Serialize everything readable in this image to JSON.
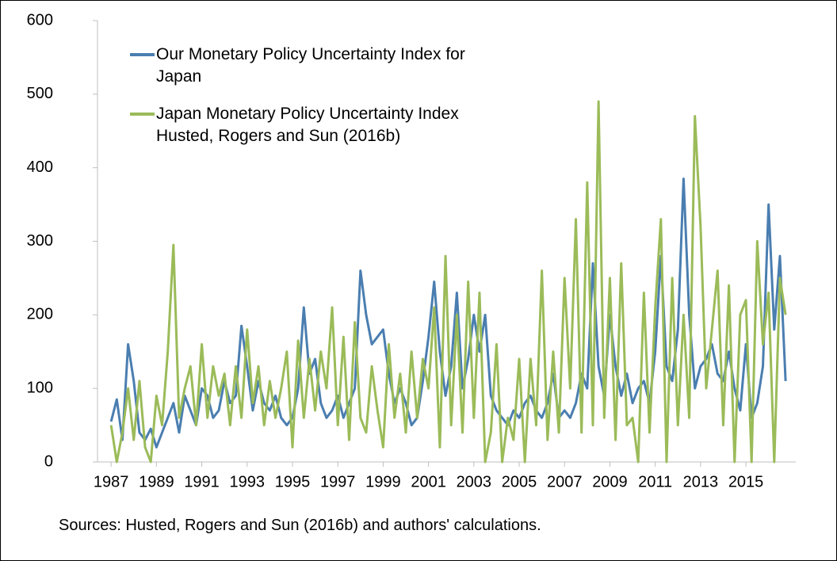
{
  "chart_data": {
    "type": "line",
    "x": [
      1987,
      1987.25,
      1987.5,
      1987.75,
      1988,
      1988.25,
      1988.5,
      1988.75,
      1989,
      1989.25,
      1989.5,
      1989.75,
      1990,
      1990.25,
      1990.5,
      1990.75,
      1991,
      1991.25,
      1991.5,
      1991.75,
      1992,
      1992.25,
      1992.5,
      1992.75,
      1993,
      1993.25,
      1993.5,
      1993.75,
      1994,
      1994.25,
      1994.5,
      1994.75,
      1995,
      1995.25,
      1995.5,
      1995.75,
      1996,
      1996.25,
      1996.5,
      1996.75,
      1997,
      1997.25,
      1997.5,
      1997.75,
      1998,
      1998.25,
      1998.5,
      1998.75,
      1999,
      1999.25,
      1999.5,
      1999.75,
      2000,
      2000.25,
      2000.5,
      2000.75,
      2001,
      2001.25,
      2001.5,
      2001.75,
      2002,
      2002.25,
      2002.5,
      2002.75,
      2003,
      2003.25,
      2003.5,
      2003.75,
      2004,
      2004.25,
      2004.5,
      2004.75,
      2005,
      2005.25,
      2005.5,
      2005.75,
      2006,
      2006.25,
      2006.5,
      2006.75,
      2007,
      2007.25,
      2007.5,
      2007.75,
      2008,
      2008.25,
      2008.5,
      2008.75,
      2009,
      2009.25,
      2009.5,
      2009.75,
      2010,
      2010.25,
      2010.5,
      2010.75,
      2011,
      2011.25,
      2011.5,
      2011.75,
      2012,
      2012.25,
      2012.5,
      2012.75,
      2013,
      2013.25,
      2013.5,
      2013.75,
      2014,
      2014.25,
      2014.5,
      2014.75,
      2015,
      2015.25,
      2015.5,
      2015.75,
      2016,
      2016.25,
      2016.5,
      2016.75
    ],
    "series": [
      {
        "name": "Our Monetary Policy Uncertainty Index for Japan",
        "color": "#4a7eb0",
        "values": [
          55,
          85,
          30,
          160,
          110,
          40,
          30,
          45,
          20,
          40,
          60,
          80,
          40,
          90,
          70,
          50,
          100,
          90,
          60,
          70,
          110,
          80,
          90,
          185,
          130,
          70,
          110,
          80,
          70,
          90,
          60,
          50,
          60,
          100,
          210,
          120,
          140,
          80,
          60,
          70,
          90,
          60,
          80,
          100,
          260,
          200,
          160,
          170,
          180,
          120,
          80,
          100,
          80,
          50,
          60,
          110,
          170,
          245,
          150,
          90,
          130,
          230,
          100,
          140,
          200,
          150,
          200,
          90,
          70,
          60,
          50,
          70,
          60,
          80,
          90,
          70,
          60,
          80,
          120,
          60,
          70,
          60,
          80,
          120,
          100,
          270,
          130,
          90,
          200,
          130,
          90,
          120,
          80,
          100,
          110,
          80,
          150,
          280,
          130,
          110,
          180,
          385,
          200,
          100,
          130,
          140,
          160,
          120,
          110,
          150,
          100,
          70,
          160,
          60,
          80,
          130,
          350,
          180,
          280,
          110
        ]
      },
      {
        "name": "Japan Monetary Policy Uncertainty Index Husted, Rogers and Sun (2016b)",
        "color": "#9bbb59",
        "values": [
          50,
          0,
          40,
          100,
          30,
          110,
          20,
          0,
          90,
          50,
          150,
          295,
          60,
          100,
          130,
          50,
          160,
          60,
          130,
          90,
          120,
          50,
          130,
          60,
          180,
          80,
          130,
          50,
          110,
          60,
          100,
          150,
          20,
          165,
          60,
          140,
          70,
          150,
          100,
          210,
          50,
          170,
          30,
          190,
          60,
          40,
          130,
          70,
          20,
          160,
          60,
          120,
          40,
          150,
          60,
          140,
          100,
          210,
          20,
          280,
          50,
          200,
          40,
          245,
          60,
          230,
          0,
          40,
          160,
          0,
          60,
          30,
          140,
          0,
          140,
          50,
          260,
          30,
          150,
          40,
          250,
          100,
          330,
          40,
          380,
          50,
          490,
          60,
          250,
          30,
          270,
          50,
          60,
          0,
          230,
          40,
          210,
          330,
          0,
          250,
          50,
          200,
          60,
          470,
          320,
          100,
          180,
          260,
          50,
          240,
          0,
          200,
          220,
          0,
          300,
          160,
          230,
          0,
          250,
          200
        ]
      }
    ],
    "xlim": [
      1986.4,
      2017.2
    ],
    "xticks": [
      1987,
      1989,
      1991,
      1993,
      1995,
      1997,
      1999,
      2001,
      2003,
      2005,
      2007,
      2009,
      2011,
      2013,
      2015
    ],
    "ylim": [
      0,
      600
    ],
    "yticks": [
      0,
      100,
      200,
      300,
      400,
      500,
      600
    ],
    "note": "Sources: Husted, Rogers and Sun (2016b) and authors' calculations."
  }
}
